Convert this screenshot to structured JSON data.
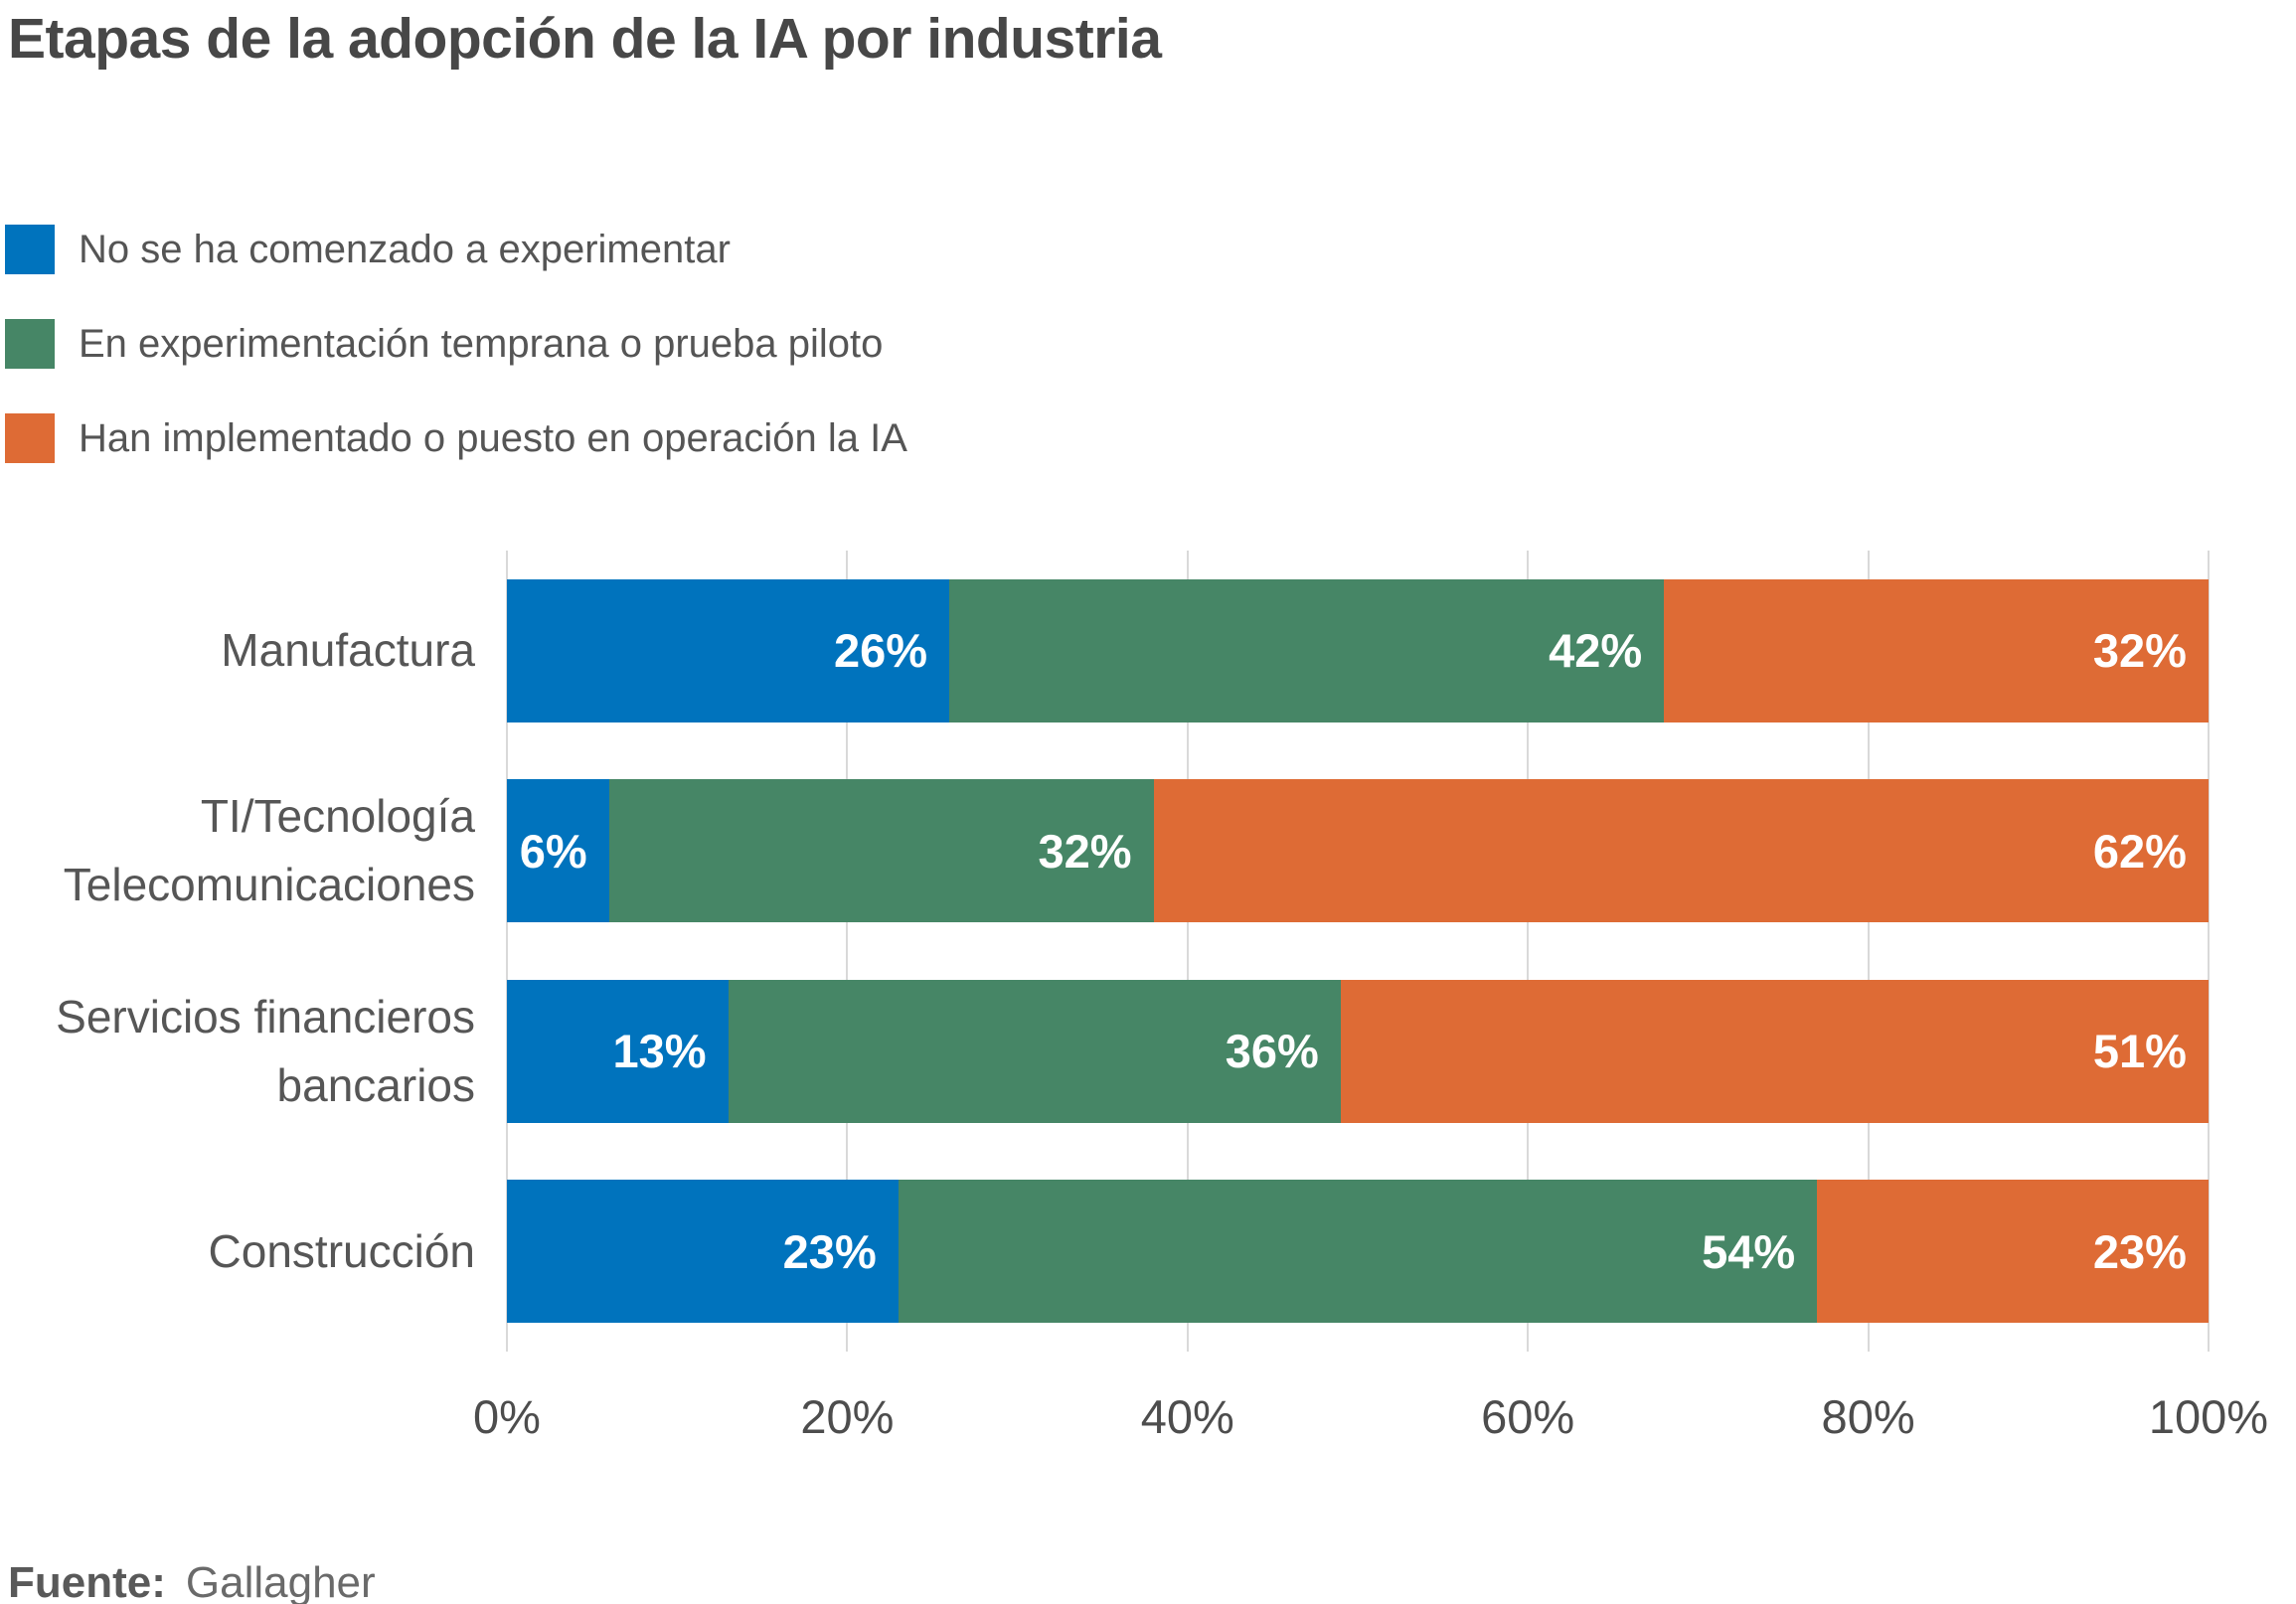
{
  "title": "Etapas de la adopción de la IA por industria",
  "source": {
    "label": "Fuente:",
    "value": "Gallagher"
  },
  "chart_data": {
    "type": "bar",
    "orientation": "horizontal",
    "stacked": true,
    "title": "Etapas de la adopción de la IA por industria",
    "categories": [
      "Manufactura",
      "TI/Tecnología Telecomunicaciones",
      "Servicios financieros bancarios",
      "Construcción"
    ],
    "category_lines": [
      [
        "Manufactura"
      ],
      [
        "TI/Tecnología",
        "Telecomunicaciones"
      ],
      [
        "Servicios financieros",
        "bancarios"
      ],
      [
        "Construcción"
      ]
    ],
    "series": [
      {
        "name": "No se ha comenzado a experimentar",
        "color": "#0073BD",
        "values": [
          26,
          6,
          13,
          23
        ]
      },
      {
        "name": "En experimentación temprana o prueba piloto",
        "color": "#468666",
        "values": [
          42,
          32,
          36,
          54
        ]
      },
      {
        "name": "Han implementado o puesto en operación la IA",
        "color": "#DE6B35",
        "values": [
          32,
          62,
          51,
          23
        ]
      }
    ],
    "value_suffix": "%",
    "xlabel": "",
    "ylabel": "",
    "xlim": [
      0,
      100
    ],
    "x_ticks": [
      "0%",
      "20%",
      "40%",
      "60%",
      "80%",
      "100%"
    ],
    "x_tick_values": [
      0,
      20,
      40,
      60,
      80,
      100
    ],
    "grid": true,
    "legend_position": "top-left",
    "value_label_color": "#ffffff",
    "grid_color": "#d9d9d9"
  }
}
